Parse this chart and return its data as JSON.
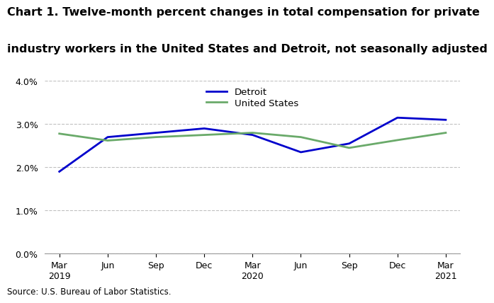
{
  "title_line1": "Chart 1. Twelve-month percent changes in total compensation for private",
  "title_line2": "industry workers in the United States and Detroit, not seasonally adjusted",
  "x_labels": [
    "Mar\n2019",
    "Jun",
    "Sep",
    "Dec",
    "Mar\n2020",
    "Jun",
    "Sep",
    "Dec",
    "Mar\n2021"
  ],
  "detroit_values": [
    1.9,
    2.7,
    2.8,
    2.9,
    2.75,
    2.35,
    2.55,
    3.15,
    3.1
  ],
  "us_values": [
    2.78,
    2.62,
    2.7,
    2.75,
    2.8,
    2.7,
    2.45,
    2.63,
    2.8
  ],
  "detroit_color": "#0000CC",
  "us_color": "#6aaa6a",
  "detroit_label": "Detroit",
  "us_label": "United States",
  "ylim": [
    0.0,
    4.0
  ],
  "yticks": [
    0.0,
    1.0,
    2.0,
    3.0,
    4.0
  ],
  "source": "Source: U.S. Bureau of Labor Statistics.",
  "grid_color": "#c0c0c0",
  "title_fontsize": 11.5,
  "legend_fontsize": 9.5,
  "axis_fontsize": 9,
  "source_fontsize": 8.5,
  "line_width": 2.0
}
